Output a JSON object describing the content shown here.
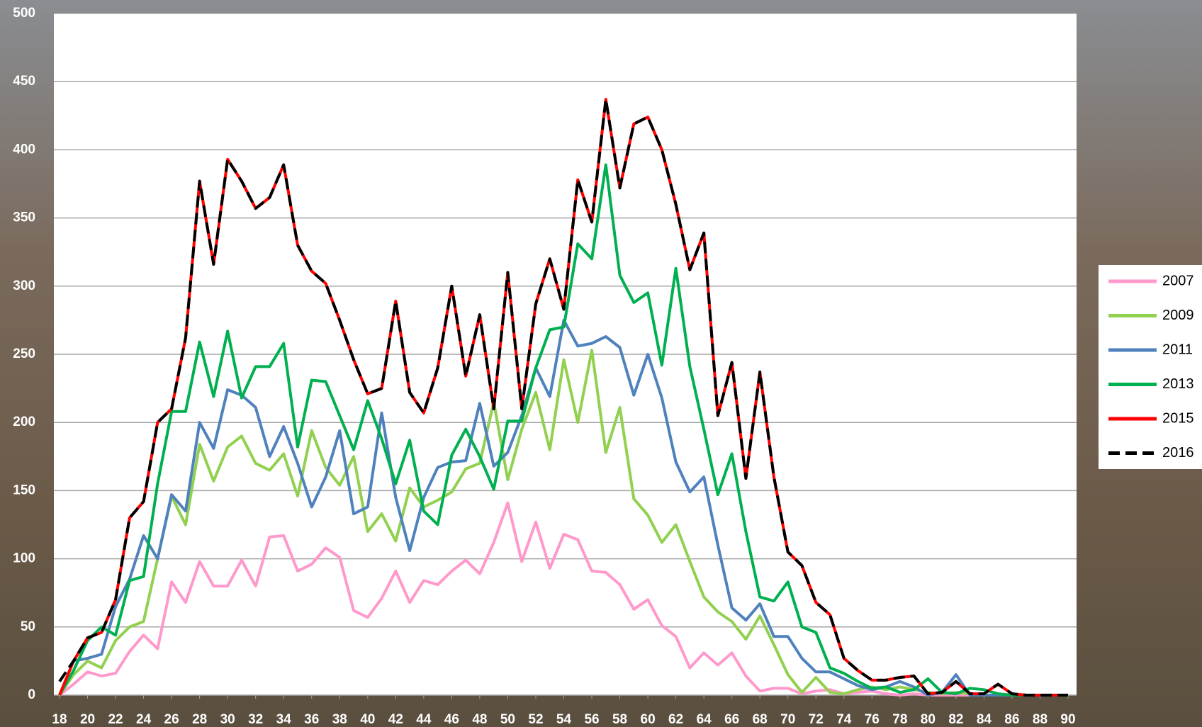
{
  "chart_data": {
    "type": "line",
    "x": [
      18,
      19,
      20,
      21,
      22,
      23,
      24,
      25,
      26,
      27,
      28,
      29,
      30,
      31,
      32,
      33,
      34,
      35,
      36,
      37,
      38,
      39,
      40,
      41,
      42,
      43,
      44,
      45,
      46,
      47,
      48,
      49,
      50,
      51,
      52,
      53,
      54,
      55,
      56,
      57,
      58,
      59,
      60,
      61,
      62,
      63,
      64,
      65,
      66,
      67,
      68,
      69,
      70,
      71,
      72,
      73,
      74,
      75,
      76,
      77,
      78,
      79,
      80,
      81,
      82,
      83,
      84,
      85,
      86,
      87,
      88,
      89,
      90
    ],
    "xlim": [
      18,
      90
    ],
    "xticks": [
      18,
      20,
      22,
      24,
      26,
      28,
      30,
      32,
      34,
      36,
      38,
      40,
      42,
      44,
      46,
      48,
      50,
      52,
      54,
      56,
      58,
      60,
      62,
      64,
      66,
      68,
      70,
      72,
      74,
      76,
      78,
      80,
      82,
      84,
      86,
      88,
      90
    ],
    "ylim": [
      0,
      500
    ],
    "yticks": [
      0,
      50,
      100,
      150,
      200,
      250,
      300,
      350,
      400,
      450,
      500
    ],
    "grid": true,
    "legend": "right",
    "series": [
      {
        "name": "2007",
        "color": "#ff99cc",
        "values": [
          0,
          8,
          17,
          14,
          16,
          32,
          44,
          34,
          83,
          68,
          98,
          80,
          80,
          99,
          80,
          116,
          117,
          91,
          96,
          108,
          101,
          62,
          57,
          71,
          91,
          68,
          84,
          81,
          91,
          99,
          89,
          112,
          141,
          98,
          127,
          93,
          118,
          114,
          91,
          90,
          81,
          63,
          70,
          51,
          43,
          20,
          31,
          22,
          31,
          14,
          3,
          5,
          5,
          1,
          3,
          4,
          1,
          2,
          3,
          1,
          0,
          1,
          0,
          0,
          0,
          0,
          0,
          0,
          0,
          0,
          0,
          0,
          0
        ]
      },
      {
        "name": "2009",
        "color": "#92d050",
        "values": [
          0,
          15,
          25,
          20,
          40,
          50,
          54,
          100,
          146,
          125,
          184,
          157,
          182,
          190,
          170,
          165,
          177,
          146,
          194,
          167,
          154,
          175,
          120,
          133,
          113,
          152,
          138,
          143,
          149,
          166,
          170,
          215,
          158,
          195,
          222,
          180,
          246,
          200,
          253,
          178,
          211,
          144,
          132,
          112,
          125,
          98,
          72,
          61,
          54,
          41,
          58,
          37,
          15,
          2,
          13,
          2,
          1,
          4,
          6,
          4,
          6,
          4,
          2,
          1,
          2,
          1,
          0,
          0,
          0,
          0,
          0,
          0,
          0
        ]
      },
      {
        "name": "2011",
        "color": "#4f81bd",
        "values": [
          0,
          25,
          27,
          30,
          65,
          85,
          117,
          100,
          147,
          135,
          200,
          181,
          224,
          220,
          211,
          175,
          197,
          170,
          138,
          160,
          194,
          133,
          138,
          207,
          145,
          106,
          145,
          167,
          171,
          172,
          214,
          168,
          178,
          205,
          240,
          219,
          275,
          256,
          258,
          263,
          255,
          220,
          250,
          218,
          171,
          149,
          160,
          110,
          64,
          55,
          67,
          43,
          43,
          27,
          17,
          17,
          12,
          7,
          4,
          6,
          10,
          6,
          0,
          2,
          15,
          0,
          0,
          0,
          0,
          0,
          0,
          0,
          0
        ]
      },
      {
        "name": "2013",
        "color": "#00b050",
        "values": [
          0,
          18,
          40,
          50,
          44,
          84,
          87,
          155,
          208,
          208,
          259,
          219,
          267,
          218,
          241,
          241,
          258,
          182,
          231,
          230,
          205,
          180,
          216,
          188,
          155,
          187,
          135,
          125,
          176,
          195,
          175,
          151,
          201,
          201,
          240,
          268,
          270,
          331,
          320,
          389,
          308,
          288,
          295,
          242,
          313,
          241,
          195,
          147,
          177,
          120,
          72,
          69,
          83,
          50,
          46,
          20,
          16,
          10,
          5,
          6,
          2,
          4,
          12,
          2,
          1,
          5,
          4,
          1,
          0,
          0,
          0,
          0,
          0
        ]
      },
      {
        "name": "2015",
        "color": "#ff0000",
        "values": [
          0,
          25,
          42,
          46,
          70,
          130,
          142,
          200,
          210,
          262,
          377,
          316,
          393,
          377,
          357,
          365,
          389,
          330,
          311,
          302,
          275,
          246,
          221,
          225,
          289,
          222,
          207,
          240,
          300,
          234,
          279,
          210,
          310,
          210,
          287,
          320,
          283,
          378,
          347,
          437,
          372,
          419,
          424,
          400,
          360,
          312,
          339,
          205,
          244,
          159,
          237,
          160,
          105,
          95,
          68,
          59,
          27,
          18,
          11,
          11,
          13,
          14,
          1,
          2,
          10,
          1,
          1,
          8,
          1,
          0,
          0,
          0,
          0
        ]
      },
      {
        "name": "2016",
        "color": "#000000",
        "line_style": "dashed",
        "values": [
          10,
          25,
          42,
          46,
          70,
          130,
          142,
          200,
          210,
          262,
          377,
          316,
          393,
          377,
          357,
          365,
          389,
          330,
          311,
          302,
          275,
          246,
          221,
          225,
          289,
          222,
          207,
          240,
          300,
          234,
          279,
          210,
          310,
          210,
          287,
          320,
          283,
          378,
          347,
          437,
          372,
          419,
          424,
          400,
          360,
          312,
          339,
          205,
          244,
          159,
          237,
          160,
          105,
          95,
          68,
          59,
          27,
          18,
          11,
          11,
          13,
          14,
          1,
          2,
          10,
          1,
          1,
          8,
          1,
          0,
          0,
          0,
          0
        ]
      }
    ]
  }
}
